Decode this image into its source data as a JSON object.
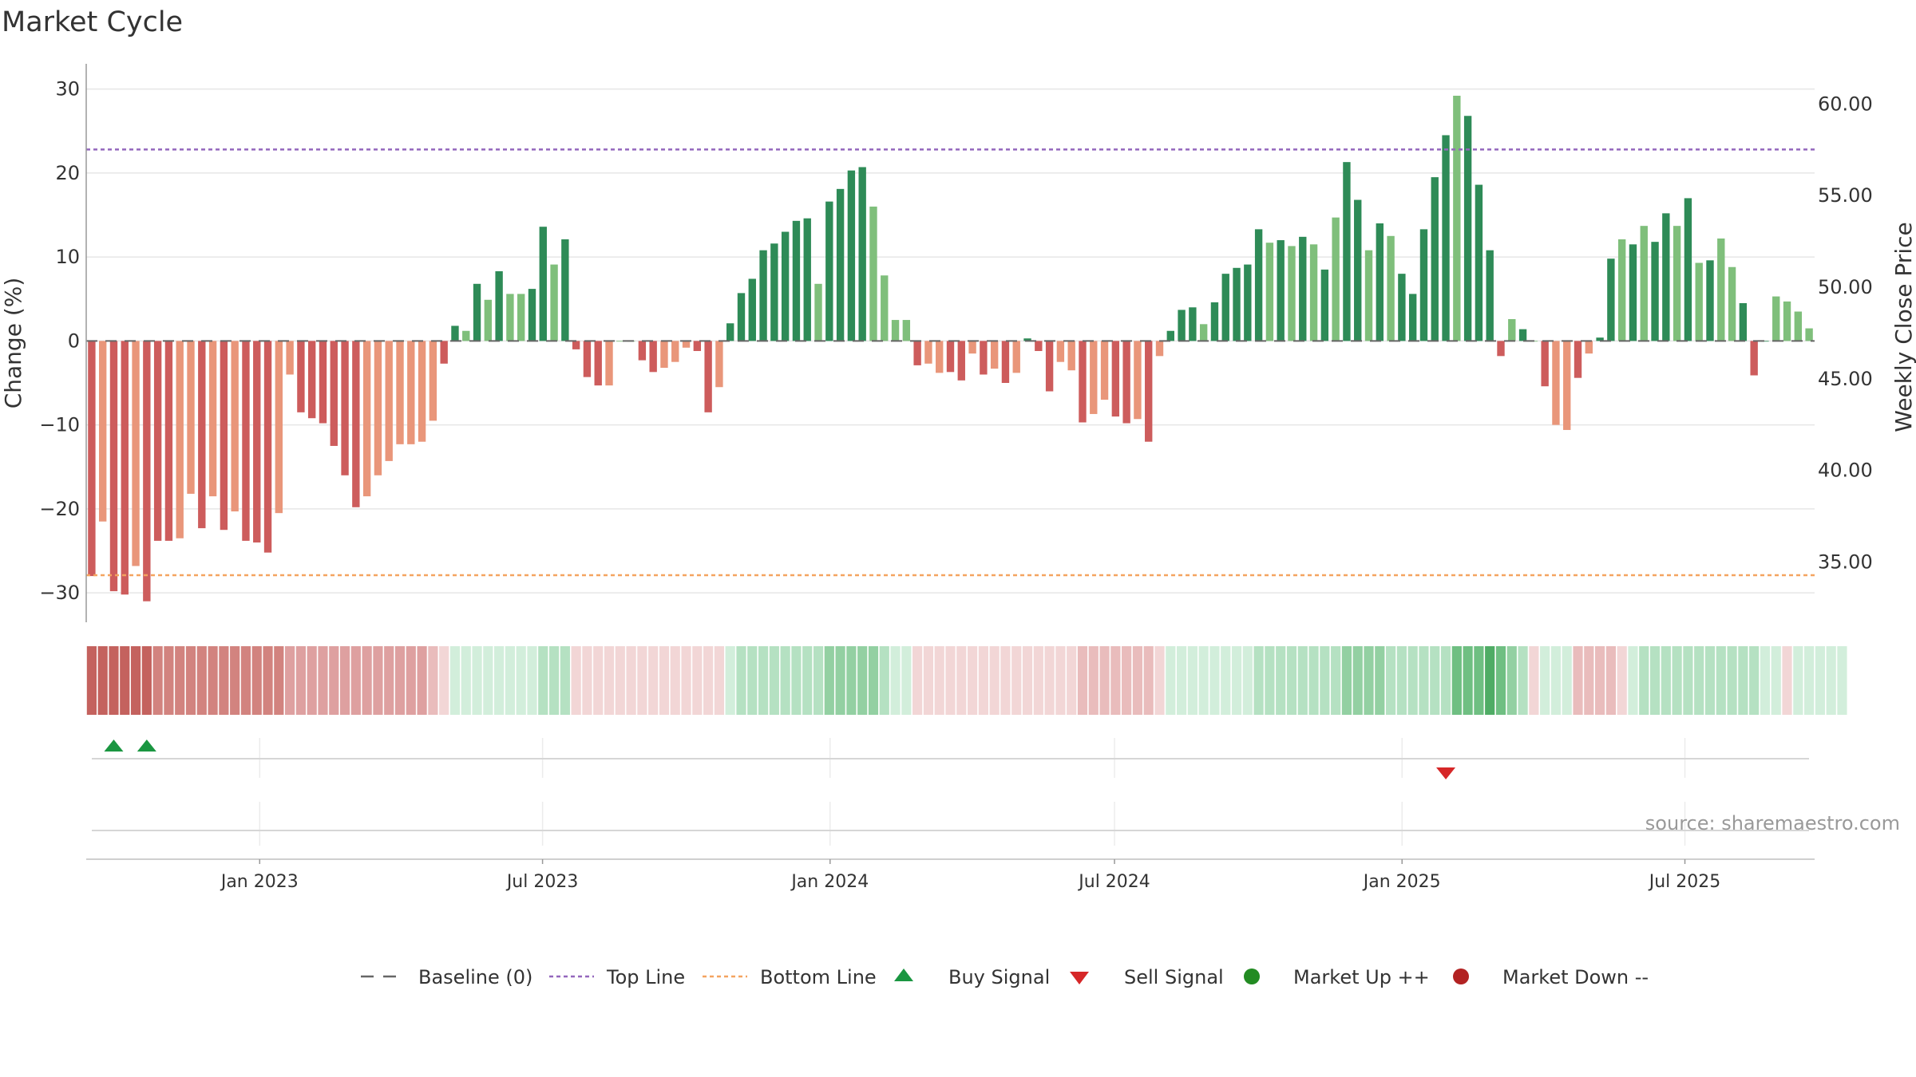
{
  "title": "Market Cycle",
  "source_note": "source: sharemaestro.com",
  "colors": {
    "up_strong": "#2e8b57",
    "up_weak": "#7fbf7b",
    "down_strong": "#cd5c5c",
    "down_weak": "#e9967a",
    "top_line": "#9467bd",
    "bottom_line": "#f4a460",
    "buy": "#1a9641",
    "sell": "#d62728",
    "market_up": "#228b22",
    "market_down": "#b22222"
  },
  "chart_data": {
    "type": "bar",
    "title": "Market Cycle",
    "ylabel": "Change (%)",
    "y2label": "Weekly Close Price",
    "ylim": [
      -33.5,
      33
    ],
    "yticks": [
      30,
      20,
      10,
      0,
      -10,
      -20,
      -30
    ],
    "ytick_labels": [
      "30",
      "20",
      "10",
      "0",
      "−10",
      "−20",
      "−30"
    ],
    "y2lim": [
      31.7,
      62.2
    ],
    "y2ticks": [
      60,
      55,
      50,
      45,
      40,
      35
    ],
    "y2tick_labels": [
      "60.00",
      "55.00",
      "50.00",
      "45.00",
      "40.00",
      "35.00"
    ],
    "top_line": 22.8,
    "bottom_line": -27.9,
    "baseline": 0,
    "x_start": "2022-09-12",
    "x_end": "2025-09-22",
    "xticks": [
      {
        "date": "2023-01-01",
        "label": "Jan 2023"
      },
      {
        "date": "2023-07-01",
        "label": "Jul 2023"
      },
      {
        "date": "2024-01-01",
        "label": "Jan 2024"
      },
      {
        "date": "2024-07-01",
        "label": "Jul 2024"
      },
      {
        "date": "2025-01-01",
        "label": "Jan 2025"
      },
      {
        "date": "2025-07-01",
        "label": "Jul 2025"
      }
    ],
    "values": [
      -28,
      -21.5,
      -29.8,
      -30.2,
      -26.8,
      -31,
      -23.8,
      -23.8,
      -23.5,
      -18.2,
      -22.3,
      -18.5,
      -22.5,
      -20.3,
      -23.8,
      -24,
      -25.2,
      -20.5,
      -4,
      -8.5,
      -9.2,
      -9.8,
      -12.5,
      -16,
      -19.8,
      -18.5,
      -16,
      -14.3,
      -12.3,
      -12.3,
      -12,
      -9.5,
      -2.7,
      1.8,
      1.2,
      6.8,
      4.9,
      8.3,
      5.6,
      5.6,
      6.2,
      13.6,
      9.1,
      12.1,
      -1,
      -4.3,
      -5.3,
      -5.3,
      0,
      0,
      -2.3,
      -3.7,
      -3.2,
      -2.5,
      -0.8,
      -1.2,
      -8.5,
      -5.5,
      2.1,
      5.7,
      7.4,
      10.8,
      11.6,
      13,
      14.3,
      14.6,
      6.8,
      16.6,
      18.1,
      20.3,
      20.7,
      16,
      7.8,
      2.5,
      2.5,
      -2.9,
      -2.7,
      -3.8,
      -3.7,
      -4.7,
      -1.5,
      -4,
      -3.3,
      -5,
      -3.8,
      0.3,
      -1.2,
      -6,
      -2.5,
      -3.5,
      -9.7,
      -8.7,
      -7,
      -9,
      -9.8,
      -9.3,
      -12,
      -1.8,
      1.2,
      3.7,
      4,
      2,
      4.6,
      8,
      8.7,
      9.1,
      13.3,
      11.7,
      12,
      11.3,
      12.4,
      11.5,
      8.5,
      14.7,
      21.3,
      16.8,
      10.8,
      14,
      12.5,
      8,
      5.6,
      13.3,
      19.5,
      24.5,
      29.2,
      26.8,
      18.6,
      10.8,
      -1.8,
      2.6,
      1.4,
      0,
      -5.4,
      -10,
      -10.6,
      -4.4,
      -1.5,
      0.4,
      9.8,
      12.1,
      11.5,
      13.7,
      11.8,
      15.2,
      13.7,
      17,
      9.3,
      9.6,
      12.2,
      8.8,
      4.5,
      -4.1,
      0,
      5.3,
      4.7,
      3.5,
      1.5
    ],
    "dark_bar_indices": [
      0,
      2,
      3,
      5,
      6,
      7,
      10,
      12,
      14,
      15,
      16,
      19,
      20,
      21,
      22,
      23,
      24,
      32,
      33,
      35,
      37,
      40,
      41,
      43,
      44,
      45,
      46,
      50,
      51,
      55,
      56,
      58,
      59,
      60,
      61,
      62,
      63,
      64,
      65,
      67,
      68,
      69,
      70,
      75,
      78,
      79,
      81,
      83,
      85,
      86,
      87,
      90,
      93,
      94,
      96,
      98,
      99,
      100,
      102,
      103,
      104,
      105,
      106,
      108,
      110,
      112,
      114,
      115,
      117,
      119,
      120,
      121,
      122,
      123,
      125,
      126,
      127,
      128,
      130,
      132,
      135,
      137,
      138,
      140,
      142,
      143,
      145,
      147,
      150,
      151,
      152
    ],
    "regime_strip": [
      -5,
      -5,
      -5,
      -5,
      -5,
      -5,
      -4,
      -4,
      -4,
      -4,
      -4,
      -4,
      -4,
      -4,
      -4,
      -4,
      -4,
      -4,
      -3,
      -3,
      -3,
      -3,
      -3,
      -3,
      -3,
      -3,
      -3,
      -3,
      -3,
      -3,
      -3,
      -2,
      -1,
      1,
      1,
      1,
      1,
      1,
      1,
      1,
      1,
      2,
      2,
      2,
      -1,
      -1,
      -1,
      -1,
      -1,
      -1,
      -1,
      -1,
      -1,
      -1,
      -1,
      -1,
      -1,
      -1,
      1,
      2,
      2,
      2,
      2,
      2,
      2,
      2,
      2,
      3,
      3,
      3,
      3,
      3,
      2,
      1,
      1,
      -1,
      -1,
      -1,
      -1,
      -1,
      -1,
      -1,
      -1,
      -1,
      -1,
      -1,
      -1,
      -1,
      -1,
      -1,
      -2,
      -2,
      -2,
      -2,
      -2,
      -2,
      -2,
      -1,
      1,
      1,
      1,
      1,
      1,
      1,
      1,
      1,
      2,
      2,
      2,
      2,
      2,
      2,
      2,
      2,
      3,
      3,
      3,
      3,
      2,
      2,
      2,
      2,
      2,
      2,
      4,
      4,
      4,
      5,
      4,
      3,
      2,
      -1,
      1,
      1,
      1,
      -2,
      -2,
      -2,
      -2,
      -1,
      1,
      2,
      2,
      2,
      2,
      2,
      2,
      2,
      2,
      2,
      2,
      2,
      1,
      1,
      -1,
      1,
      1,
      1,
      1,
      1
    ],
    "buy_signals": [
      2,
      5
    ],
    "sell_signals": [
      123
    ],
    "legend": [
      {
        "key": "baseline",
        "label": "Baseline (0)"
      },
      {
        "key": "top",
        "label": "Top Line"
      },
      {
        "key": "bottom",
        "label": "Bottom Line"
      },
      {
        "key": "buy",
        "label": "Buy Signal"
      },
      {
        "key": "sell",
        "label": "Sell Signal"
      },
      {
        "key": "up",
        "label": "Market Up ++"
      },
      {
        "key": "down",
        "label": "Market Down --"
      }
    ]
  }
}
